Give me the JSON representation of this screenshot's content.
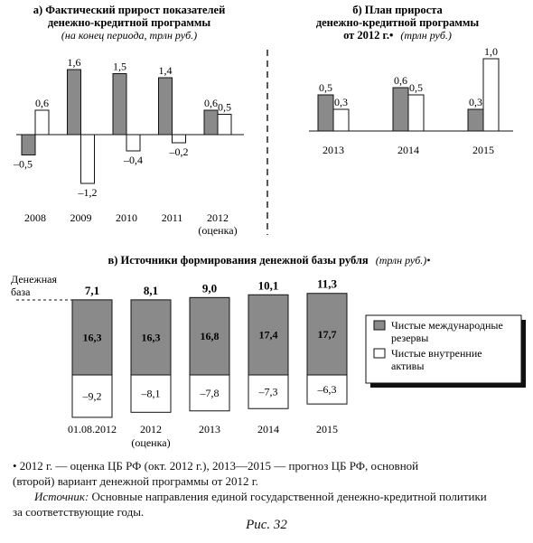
{
  "chart_data": [
    {
      "id": "a",
      "type": "bar",
      "title_line1": "а) Фактический прирост показателей",
      "title_line2": "денежно-кредитной программы",
      "subtitle": "(на конец периода, трлн руб.)",
      "categories": [
        "2008",
        "2009",
        "2010",
        "2011",
        "2012"
      ],
      "category_notes": [
        "",
        "",
        "",
        "",
        "(оценка)"
      ],
      "series": [
        {
          "values": [
            -0.5,
            1.6,
            1.5,
            1.4,
            0.6
          ],
          "labels": [
            "–0,5",
            "1,6",
            "1,5",
            "1,4",
            "0,6"
          ],
          "color": "#8a8a8a"
        },
        {
          "values": [
            0.6,
            -1.2,
            -0.4,
            -0.2,
            0.5
          ],
          "labels": [
            "0,6",
            "–1,2",
            "–0,4",
            "–0,2",
            "0,5"
          ],
          "color": "#ffffff"
        }
      ]
    },
    {
      "id": "b",
      "type": "bar",
      "title_line1": "б) План прироста",
      "title_line2": "денежно-кредитной программы",
      "title_line3": "от 2012 г.•",
      "subtitle": "(трлн руб.)",
      "categories": [
        "2013",
        "2014",
        "2015"
      ],
      "series": [
        {
          "values": [
            0.5,
            0.6,
            0.3
          ],
          "labels": [
            "0,5",
            "0,6",
            "0,3"
          ],
          "color": "#8a8a8a"
        },
        {
          "values": [
            0.3,
            0.5,
            1.0
          ],
          "labels": [
            "0,3",
            "0,5",
            "1,0"
          ],
          "color": "#ffffff"
        }
      ]
    },
    {
      "id": "c",
      "type": "bar",
      "title": "в) Источники формирования денежной базы рубля",
      "subtitle": "(трлн руб.)•",
      "base_label_1": "Денежная",
      "base_label_2": "база",
      "categories": [
        "01.08.2012",
        "2012",
        "2013",
        "2014",
        "2015"
      ],
      "category_notes": [
        "",
        "(оценка)",
        "",
        "",
        ""
      ],
      "totals": [
        7.1,
        8.1,
        9.0,
        10.1,
        11.3
      ],
      "total_labels": [
        "7,1",
        "8,1",
        "9,0",
        "10,1",
        "11,3"
      ],
      "series": [
        {
          "name": "Чистые международные резервы",
          "name_line1": "Чистые международные",
          "name_line2": "резервы",
          "values": [
            16.3,
            16.3,
            16.8,
            17.4,
            17.7
          ],
          "labels": [
            "16,3",
            "16,3",
            "16,8",
            "17,4",
            "17,7"
          ],
          "color": "#8a8a8a"
        },
        {
          "name": "Чистые внутренние активы",
          "name_line1": "Чистые внутренние",
          "name_line2": "активы",
          "values": [
            -9.2,
            -8.1,
            -7.8,
            -7.3,
            -6.3
          ],
          "labels": [
            "–9,2",
            "–8,1",
            "–7,8",
            "–7,3",
            "–6,3"
          ],
          "color": "#ffffff"
        }
      ]
    }
  ],
  "footnote_line1": "• 2012 г. — оценка ЦБ РФ (окт. 2012 г.), 2013—2015 — прогноз ЦБ РФ, основной",
  "footnote_line2": "(второй) вариант денежной программы от 2012 г.",
  "source_label": "Источник:",
  "source_text": " Основные направления единой государственной денежно-кредитной политики",
  "source_line2": "за соответствующие годы.",
  "caption": "Рис. 32"
}
